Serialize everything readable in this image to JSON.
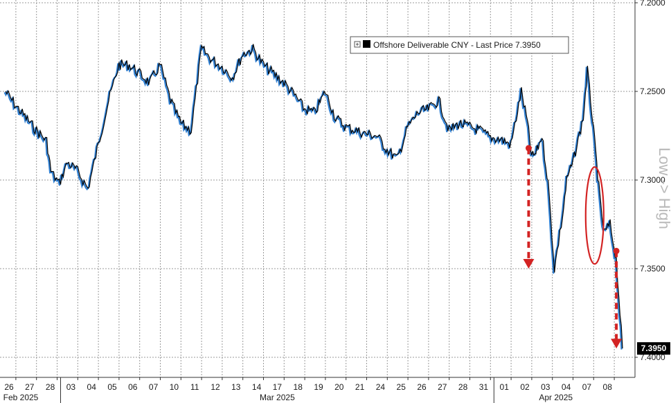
{
  "chart_data": {
    "type": "line",
    "title": "",
    "xlabel": "",
    "ylabel": "Low -> High",
    "y_inverted": true,
    "ylim": [
      7.2,
      7.4
    ],
    "y_ticks": [
      7.2,
      7.25,
      7.3,
      7.35,
      7.4
    ],
    "y_tick_labels": [
      "7.2000",
      "7.2500",
      "7.3000",
      "7.3500",
      "7.4000"
    ],
    "grid": true,
    "legend_position": "top-right",
    "x_tick_labels": [
      "26",
      "27",
      "28",
      "03",
      "04",
      "05",
      "06",
      "07",
      "10",
      "11",
      "12",
      "13",
      "14",
      "17",
      "18",
      "19",
      "20",
      "21",
      "24",
      "25",
      "26",
      "27",
      "28",
      "31",
      "01",
      "02",
      "03",
      "04",
      "07",
      "08"
    ],
    "month_labels": [
      "Feb 2025",
      "Mar 2025",
      "Apr 2025"
    ],
    "series": [
      {
        "name": "Offshore Deliverable CNY - Last Price 7.3950",
        "color": "#000000",
        "shadow_color": "#2f7fd2",
        "last_value": 7.395,
        "last_value_label": "7.3950",
        "x": [
          0,
          0.5,
          1,
          1.5,
          2,
          2.2,
          2.6,
          3,
          3.5,
          4,
          4.5,
          5,
          5.5,
          6,
          6.5,
          7,
          7.5,
          8,
          8.5,
          9,
          9.5,
          10,
          10.5,
          11,
          11.5,
          12,
          12.5,
          13,
          13.5,
          14,
          14.5,
          15,
          15.5,
          16,
          16.5,
          17,
          17.5,
          18,
          18.5,
          19,
          19.5,
          20,
          20.5,
          21,
          21.5,
          22,
          22.5,
          23,
          23.5,
          24,
          24.5,
          25,
          25.3,
          25.5,
          25.7,
          26,
          26.3,
          26.6,
          27,
          27.2,
          27.5,
          28,
          28.2,
          28.4,
          28.6,
          28.8,
          29,
          29.3,
          29.6,
          29.9
        ],
        "values": [
          7.25,
          7.258,
          7.265,
          7.272,
          7.278,
          7.295,
          7.302,
          7.29,
          7.295,
          7.305,
          7.28,
          7.255,
          7.235,
          7.235,
          7.24,
          7.245,
          7.235,
          7.255,
          7.268,
          7.272,
          7.226,
          7.232,
          7.236,
          7.242,
          7.229,
          7.226,
          7.235,
          7.24,
          7.245,
          7.252,
          7.26,
          7.262,
          7.25,
          7.265,
          7.27,
          7.272,
          7.274,
          7.275,
          7.283,
          7.288,
          7.27,
          7.262,
          7.26,
          7.255,
          7.272,
          7.268,
          7.27,
          7.272,
          7.276,
          7.277,
          7.28,
          7.25,
          7.268,
          7.287,
          7.285,
          7.275,
          7.302,
          7.35,
          7.32,
          7.3,
          7.29,
          7.265,
          7.238,
          7.26,
          7.285,
          7.31,
          7.33,
          7.325,
          7.345,
          7.395
        ]
      }
    ],
    "annotations": [
      {
        "type": "down-arrow",
        "color": "#d32323",
        "x_from": 25.35,
        "value_from": 7.282,
        "value_to": 7.35
      },
      {
        "type": "ellipse",
        "color": "#d32323",
        "x": 28.55,
        "value": 7.32
      },
      {
        "type": "down-arrow",
        "color": "#d32323",
        "x_from": 29.6,
        "value_from": 7.34,
        "value_to": 7.395
      }
    ]
  }
}
